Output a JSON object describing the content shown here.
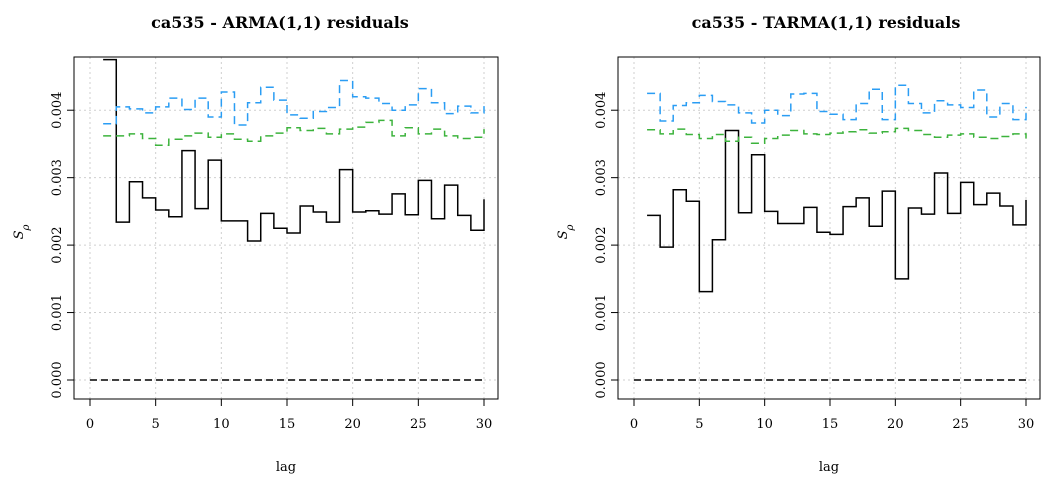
{
  "chart_data": [
    {
      "type": "line",
      "title": "ca535 - ARMA(1,1) residuals",
      "xlabel": "lag",
      "ylabel": "S",
      "ylabel_sub": "ρ",
      "xlim": [
        0,
        30
      ],
      "ylim": [
        0,
        0.0047
      ],
      "xticks": [
        0,
        5,
        10,
        15,
        20,
        25,
        30
      ],
      "yticks": [
        0.0,
        0.001,
        0.002,
        0.003,
        0.004
      ],
      "ytick_labels": [
        "0.000",
        "0.001",
        "0.002",
        "0.003",
        "0.004"
      ],
      "grid": true,
      "series": [
        {
          "style": "step-solid",
          "color": "#000000",
          "x": [
            1,
            2,
            3,
            4,
            5,
            6,
            7,
            8,
            9,
            10,
            11,
            12,
            13,
            14,
            15,
            16,
            17,
            18,
            19,
            20,
            21,
            22,
            23,
            24,
            25,
            26,
            27,
            28,
            29,
            30
          ],
          "values": [
            0.00475,
            0.00234,
            0.00294,
            0.0027,
            0.00252,
            0.00242,
            0.0034,
            0.00254,
            0.00326,
            0.00236,
            0.00236,
            0.00206,
            0.00247,
            0.00225,
            0.00218,
            0.00258,
            0.00249,
            0.00234,
            0.00312,
            0.00249,
            0.00251,
            0.00246,
            0.00276,
            0.00245,
            0.00296,
            0.00239,
            0.00289,
            0.00244,
            0.00222,
            0.00268
          ]
        },
        {
          "style": "step-dashed",
          "color": "#2a9df4",
          "x": [
            1,
            2,
            3,
            4,
            5,
            6,
            7,
            8,
            9,
            10,
            11,
            12,
            13,
            14,
            15,
            16,
            17,
            18,
            19,
            20,
            21,
            22,
            23,
            24,
            25,
            26,
            27,
            28,
            29,
            30
          ],
          "values": [
            0.0038,
            0.00405,
            0.00402,
            0.00396,
            0.00405,
            0.00418,
            0.00401,
            0.00418,
            0.0039,
            0.00427,
            0.00378,
            0.00411,
            0.00434,
            0.00415,
            0.00393,
            0.00388,
            0.00398,
            0.00404,
            0.00444,
            0.0042,
            0.00418,
            0.0041,
            0.004,
            0.00408,
            0.00432,
            0.00411,
            0.00395,
            0.00406,
            0.00396,
            0.00406
          ]
        },
        {
          "style": "step-dashed",
          "color": "#3cb33c",
          "x": [
            1,
            2,
            3,
            4,
            5,
            6,
            7,
            8,
            9,
            10,
            11,
            12,
            13,
            14,
            15,
            16,
            17,
            18,
            19,
            20,
            21,
            22,
            23,
            24,
            25,
            26,
            27,
            28,
            29,
            30
          ],
          "values": [
            0.00362,
            0.00362,
            0.00365,
            0.00358,
            0.00348,
            0.00357,
            0.00362,
            0.00366,
            0.0036,
            0.00365,
            0.00357,
            0.00354,
            0.00362,
            0.00366,
            0.00374,
            0.0037,
            0.00373,
            0.00365,
            0.00372,
            0.00375,
            0.00382,
            0.00385,
            0.00362,
            0.00374,
            0.00365,
            0.00372,
            0.00362,
            0.00358,
            0.0036,
            0.00372
          ]
        },
        {
          "style": "dashed",
          "color": "#000000",
          "x": [
            0,
            30
          ],
          "values": [
            0.0,
            0.0
          ]
        }
      ]
    },
    {
      "type": "line",
      "title": "ca535 - TARMA(1,1) residuals",
      "xlabel": "lag",
      "ylabel": "S",
      "ylabel_sub": "ρ",
      "xlim": [
        0,
        30
      ],
      "ylim": [
        0,
        0.0047
      ],
      "xticks": [
        0,
        5,
        10,
        15,
        20,
        25,
        30
      ],
      "yticks": [
        0.0,
        0.001,
        0.002,
        0.003,
        0.004
      ],
      "ytick_labels": [
        "0.000",
        "0.001",
        "0.002",
        "0.003",
        "0.004"
      ],
      "grid": true,
      "series": [
        {
          "style": "step-solid",
          "color": "#000000",
          "x": [
            1,
            2,
            3,
            4,
            5,
            6,
            7,
            8,
            9,
            10,
            11,
            12,
            13,
            14,
            15,
            16,
            17,
            18,
            19,
            20,
            21,
            22,
            23,
            24,
            25,
            26,
            27,
            28,
            29,
            30
          ],
          "values": [
            0.00244,
            0.00197,
            0.00282,
            0.00265,
            0.00131,
            0.00208,
            0.0037,
            0.00248,
            0.00334,
            0.0025,
            0.00232,
            0.00232,
            0.00256,
            0.00219,
            0.00216,
            0.00257,
            0.0027,
            0.00228,
            0.0028,
            0.0015,
            0.00255,
            0.00246,
            0.00307,
            0.00247,
            0.00293,
            0.0026,
            0.00277,
            0.00258,
            0.0023,
            0.00267
          ]
        },
        {
          "style": "step-dashed",
          "color": "#2a9df4",
          "x": [
            1,
            2,
            3,
            4,
            5,
            6,
            7,
            8,
            9,
            10,
            11,
            12,
            13,
            14,
            15,
            16,
            17,
            18,
            19,
            20,
            21,
            22,
            23,
            24,
            25,
            26,
            27,
            28,
            29,
            30
          ],
          "values": [
            0.00425,
            0.00384,
            0.00407,
            0.00411,
            0.00422,
            0.00413,
            0.00408,
            0.00396,
            0.00381,
            0.004,
            0.00392,
            0.00424,
            0.00425,
            0.00398,
            0.00394,
            0.00386,
            0.0041,
            0.00431,
            0.00386,
            0.00437,
            0.0041,
            0.00396,
            0.00414,
            0.00408,
            0.00404,
            0.0043,
            0.0039,
            0.0041,
            0.00386,
            0.00405
          ]
        },
        {
          "style": "step-dashed",
          "color": "#3cb33c",
          "x": [
            1,
            2,
            3,
            4,
            5,
            6,
            7,
            8,
            9,
            10,
            11,
            12,
            13,
            14,
            15,
            16,
            17,
            18,
            19,
            20,
            21,
            22,
            23,
            24,
            25,
            26,
            27,
            28,
            29,
            30
          ],
          "values": [
            0.00371,
            0.00365,
            0.00372,
            0.00364,
            0.00358,
            0.00364,
            0.00354,
            0.0036,
            0.00351,
            0.00358,
            0.00363,
            0.0037,
            0.00365,
            0.00364,
            0.00366,
            0.00368,
            0.00371,
            0.00366,
            0.00368,
            0.00373,
            0.0037,
            0.00364,
            0.0036,
            0.00363,
            0.00365,
            0.0036,
            0.00358,
            0.00361,
            0.00365,
            0.00358
          ]
        },
        {
          "style": "dashed",
          "color": "#000000",
          "x": [
            0,
            30
          ],
          "values": [
            0.0,
            0.0
          ]
        }
      ]
    }
  ]
}
